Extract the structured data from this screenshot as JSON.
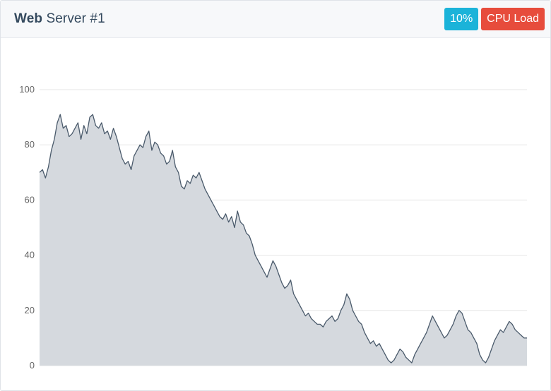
{
  "header": {
    "title_strong": "Web",
    "title_rest": "Server #1",
    "badge_percent": "10%",
    "badge_label": "CPU Load"
  },
  "colors": {
    "line": "#4a5a6b",
    "fill": "#d5d9de",
    "grid": "#e6e6e6",
    "badge_percent": "#1bb3d9",
    "badge_label": "#e74c3c"
  },
  "chart_data": {
    "type": "area",
    "ylim": [
      0,
      100
    ],
    "yticks": [
      0,
      20,
      40,
      60,
      80,
      100
    ],
    "grid": true,
    "values": [
      70,
      71,
      68,
      72,
      78,
      82,
      88,
      91,
      86,
      87,
      83,
      84,
      86,
      88,
      82,
      87,
      84,
      90,
      91,
      87,
      86,
      88,
      84,
      85,
      82,
      86,
      83,
      79,
      75,
      73,
      74,
      71,
      76,
      78,
      80,
      79,
      83,
      85,
      78,
      81,
      80,
      77,
      76,
      73,
      74,
      78,
      72,
      70,
      65,
      64,
      67,
      66,
      69,
      68,
      70,
      67,
      64,
      62,
      60,
      58,
      56,
      54,
      53,
      55,
      52,
      54,
      50,
      56,
      52,
      51,
      48,
      47,
      44,
      40,
      38,
      36,
      34,
      32,
      35,
      38,
      36,
      33,
      30,
      28,
      29,
      31,
      26,
      24,
      22,
      20,
      18,
      19,
      17,
      16,
      15,
      15,
      14,
      16,
      17,
      18,
      16,
      17,
      20,
      22,
      26,
      24,
      20,
      18,
      16,
      15,
      12,
      10,
      8,
      9,
      7,
      8,
      6,
      4,
      2,
      1,
      2,
      4,
      6,
      5,
      3,
      2,
      1,
      4,
      6,
      8,
      10,
      12,
      15,
      18,
      16,
      14,
      12,
      10,
      11,
      13,
      15,
      18,
      20,
      19,
      16,
      13,
      12,
      10,
      8,
      4,
      2,
      1,
      3,
      6,
      9,
      11,
      13,
      12,
      14,
      16,
      15,
      13,
      12,
      11,
      10,
      10
    ],
    "xlabel": "",
    "ylabel": ""
  }
}
